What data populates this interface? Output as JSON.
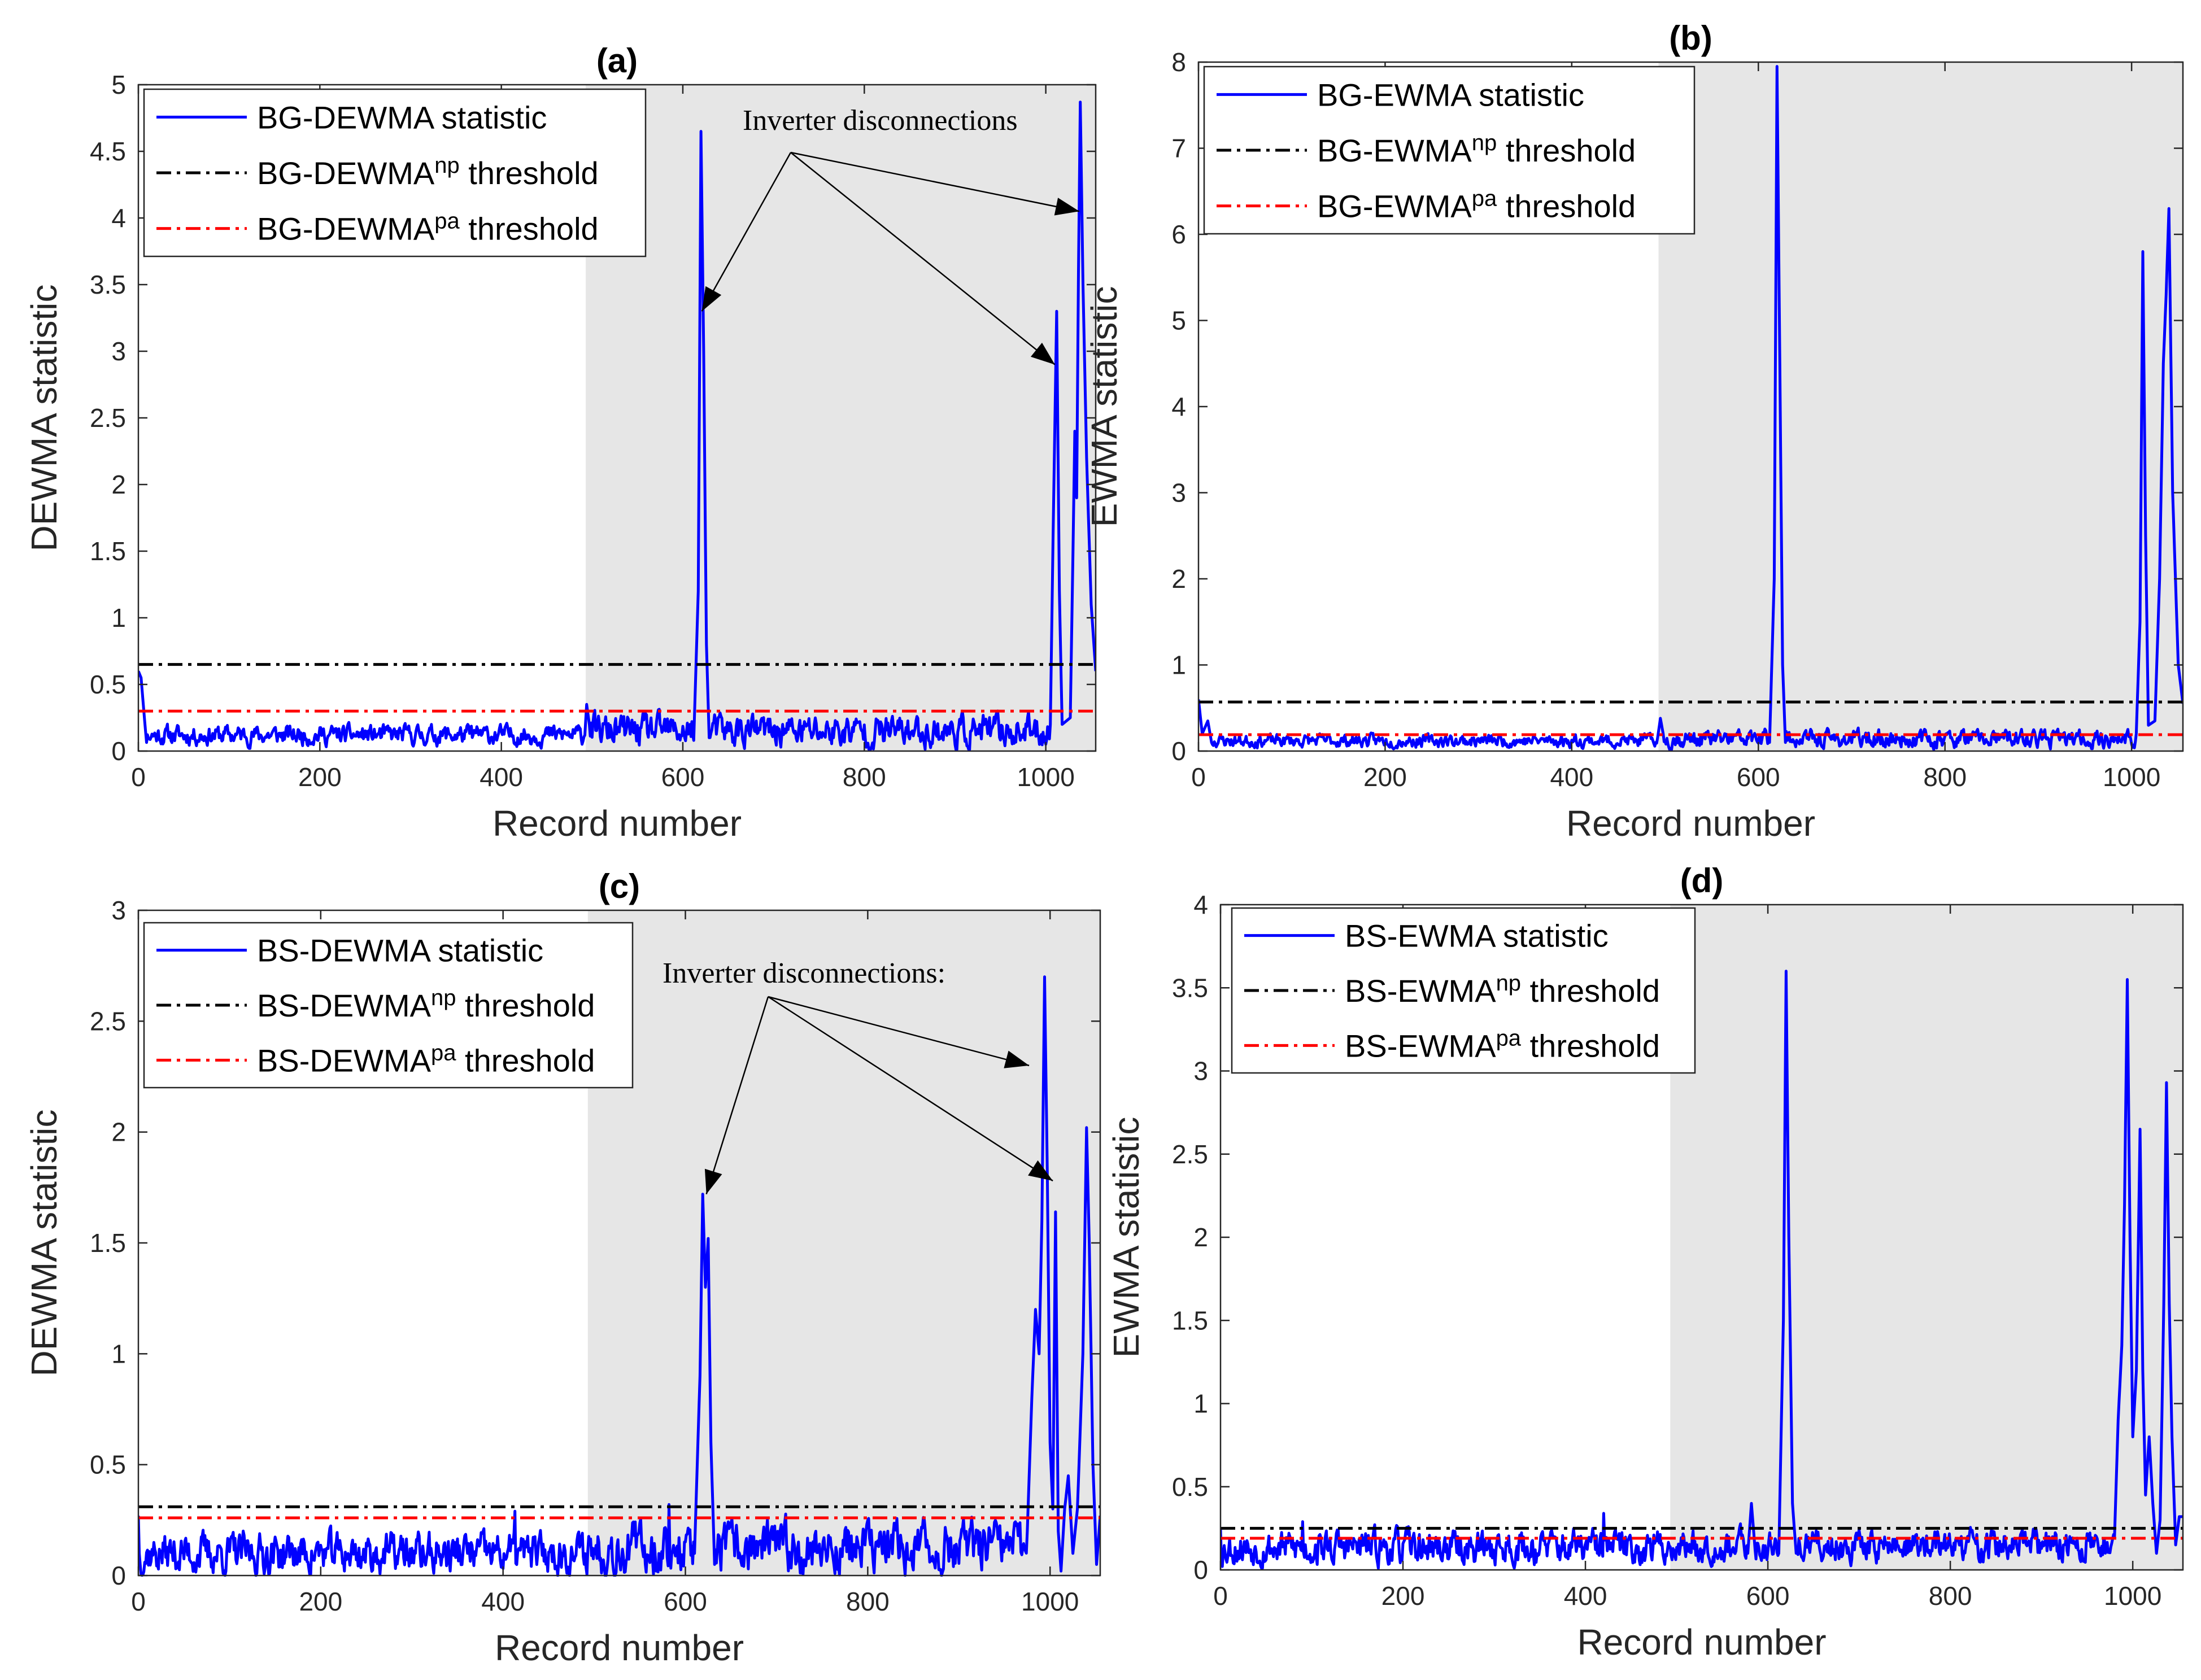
{
  "figure": {
    "background": "#ffffff",
    "colors": {
      "statistic": "#0000ff",
      "np_threshold": "#000000",
      "pa_threshold": "#ff0000",
      "shade": "#e6e6e6",
      "axis": "#262626"
    }
  },
  "chart_data": [
    {
      "id": "a",
      "type": "line",
      "title": "(a)",
      "xlabel": "Record number",
      "ylabel": "DEWMA statistic",
      "xlim": [
        0,
        1055
      ],
      "ylim": [
        0,
        5
      ],
      "xticks": [
        0,
        200,
        400,
        600,
        800,
        1000
      ],
      "yticks": [
        0,
        0.5,
        1,
        1.5,
        2,
        2.5,
        3,
        3.5,
        4,
        4.5,
        5
      ],
      "shaded_region": [
        493,
        1055
      ],
      "legend_position": "top-left",
      "statistic_series": {
        "name": "BG-DEWMA statistic",
        "baseline": {
          "seed": 11,
          "before": [
            0.04,
            0.2
          ],
          "after": [
            0.02,
            0.28
          ]
        },
        "points": [
          [
            0,
            0.6
          ],
          [
            3,
            0.55
          ],
          [
            8,
            0.14
          ],
          [
            492,
            0.12
          ],
          [
            494,
            0.35
          ],
          [
            497,
            0.2
          ],
          [
            612,
            0.08
          ],
          [
            617,
            1.2
          ],
          [
            620,
            4.65
          ],
          [
            623,
            3.0
          ],
          [
            626,
            0.8
          ],
          [
            629,
            0.1
          ],
          [
            1005,
            0.2
          ],
          [
            1008,
            1.6
          ],
          [
            1012,
            3.3
          ],
          [
            1015,
            1.2
          ],
          [
            1018,
            0.2
          ],
          [
            1027,
            0.25
          ],
          [
            1030,
            1.5
          ],
          [
            1032,
            2.4
          ],
          [
            1034,
            1.9
          ],
          [
            1036,
            3.6
          ],
          [
            1038,
            4.87
          ],
          [
            1041,
            3.5
          ],
          [
            1045,
            2.2
          ],
          [
            1050,
            1.1
          ],
          [
            1055,
            0.6
          ]
        ]
      },
      "thresholds": [
        {
          "kind": "np",
          "base": "BG-DEWMA",
          "sup": "np",
          "suffix": "threshold",
          "value": 0.65
        },
        {
          "kind": "pa",
          "base": "BG-DEWMA",
          "sup": "pa",
          "suffix": "threshold",
          "value": 0.3
        }
      ],
      "annotation": {
        "text": "Inverter disconnections",
        "arrow_targets": [
          [
            621,
            3.3
          ],
          [
            1010,
            2.9
          ],
          [
            1037,
            4.05
          ]
        ]
      }
    },
    {
      "id": "b",
      "type": "line",
      "title": "(b)",
      "xlabel": "Record number",
      "ylabel": "EWMA statistic",
      "xlim": [
        0,
        1055
      ],
      "ylim": [
        0,
        8
      ],
      "xticks": [
        0,
        200,
        400,
        600,
        800,
        1000
      ],
      "yticks": [
        0,
        1,
        2,
        3,
        4,
        5,
        6,
        7,
        8
      ],
      "shaded_region": [
        493,
        1055
      ],
      "legend_position": "top-left",
      "statistic_series": {
        "name": "BG-EWMA statistic",
        "baseline": {
          "seed": 23,
          "before": [
            0.04,
            0.2
          ],
          "after": [
            0.03,
            0.25
          ]
        },
        "points": [
          [
            0,
            0.6
          ],
          [
            4,
            0.2
          ],
          [
            10,
            0.35
          ],
          [
            14,
            0.1
          ],
          [
            492,
            0.15
          ],
          [
            495,
            0.38
          ],
          [
            498,
            0.2
          ],
          [
            612,
            0.1
          ],
          [
            617,
            2.0
          ],
          [
            620,
            7.95
          ],
          [
            623,
            4.5
          ],
          [
            626,
            1.0
          ],
          [
            629,
            0.1
          ],
          [
            1005,
            0.2
          ],
          [
            1009,
            1.5
          ],
          [
            1012,
            5.8
          ],
          [
            1015,
            2.5
          ],
          [
            1018,
            0.3
          ],
          [
            1025,
            0.35
          ],
          [
            1030,
            2.0
          ],
          [
            1034,
            4.5
          ],
          [
            1037,
            5.3
          ],
          [
            1040,
            6.3
          ],
          [
            1044,
            3.0
          ],
          [
            1050,
            1.0
          ],
          [
            1055,
            0.55
          ]
        ]
      },
      "thresholds": [
        {
          "kind": "np",
          "base": "BG-EWMA",
          "sup": "np",
          "suffix": "threshold",
          "value": 0.57
        },
        {
          "kind": "pa",
          "base": "BG-EWMA",
          "sup": "pa",
          "suffix": "threshold",
          "value": 0.19
        }
      ]
    },
    {
      "id": "c",
      "type": "line",
      "title": "(c)",
      "xlabel": "Record number",
      "ylabel": "DEWMA statistic",
      "xlim": [
        0,
        1055
      ],
      "ylim": [
        0,
        3
      ],
      "xticks": [
        0,
        200,
        400,
        600,
        800,
        1000
      ],
      "yticks": [
        0,
        0.5,
        1,
        1.5,
        2,
        2.5,
        3
      ],
      "shaded_region": [
        493,
        1055
      ],
      "legend_position": "top-left",
      "statistic_series": {
        "name": "BS-DEWMA statistic",
        "baseline": {
          "seed": 37,
          "before": [
            0.0,
            0.2
          ],
          "after": [
            0.0,
            0.25
          ]
        },
        "points": [
          [
            0,
            0.27
          ],
          [
            413,
            0.29
          ],
          [
            582,
            0.32
          ],
          [
            610,
            0.1
          ],
          [
            616,
            0.9
          ],
          [
            619,
            1.72
          ],
          [
            622,
            1.3
          ],
          [
            625,
            1.52
          ],
          [
            628,
            0.6
          ],
          [
            632,
            0.05
          ],
          [
            975,
            0.2
          ],
          [
            980,
            0.8
          ],
          [
            984,
            1.2
          ],
          [
            988,
            1.0
          ],
          [
            991,
            1.6
          ],
          [
            994,
            2.7
          ],
          [
            997,
            1.8
          ],
          [
            1000,
            0.6
          ],
          [
            1003,
            0.3
          ],
          [
            1006,
            1.64
          ],
          [
            1009,
            0.2
          ],
          [
            1012,
            0.02
          ],
          [
            1016,
            0.3
          ],
          [
            1020,
            0.45
          ],
          [
            1025,
            0.1
          ],
          [
            1030,
            0.3
          ],
          [
            1036,
            1.0
          ],
          [
            1040,
            2.02
          ],
          [
            1043,
            1.5
          ],
          [
            1047,
            0.5
          ],
          [
            1051,
            0.05
          ],
          [
            1055,
            0.27
          ]
        ]
      },
      "thresholds": [
        {
          "kind": "np",
          "base": "BS-DEWMA",
          "sup": "np",
          "suffix": "threshold",
          "value": 0.31
        },
        {
          "kind": "pa",
          "base": "BS-DEWMA",
          "sup": "pa",
          "suffix": "threshold",
          "value": 0.26
        }
      ],
      "annotation": {
        "text": "Inverter disconnections:",
        "arrow_targets": [
          [
            623,
            1.72
          ],
          [
            977,
            2.3
          ],
          [
            1003,
            1.78
          ]
        ]
      }
    },
    {
      "id": "d",
      "type": "line",
      "title": "(d)",
      "xlabel": "Record number",
      "ylabel": "EWMA statistic",
      "xlim": [
        0,
        1055
      ],
      "ylim": [
        0,
        4
      ],
      "xticks": [
        0,
        200,
        400,
        600,
        800,
        1000
      ],
      "yticks": [
        0,
        0.5,
        1,
        1.5,
        2,
        2.5,
        3,
        3.5,
        4
      ],
      "shaded_region": [
        493,
        1055
      ],
      "legend_position": "top-left",
      "statistic_series": {
        "name": "BS-EWMA statistic",
        "baseline": {
          "seed": 53,
          "before": [
            0.02,
            0.25
          ],
          "after": [
            0.04,
            0.25
          ]
        },
        "points": [
          [
            0,
            0.25
          ],
          [
            90,
            0.29
          ],
          [
            420,
            0.34
          ],
          [
            578,
            0.1
          ],
          [
            582,
            0.4
          ],
          [
            586,
            0.12
          ],
          [
            612,
            0.1
          ],
          [
            617,
            1.5
          ],
          [
            620,
            3.6
          ],
          [
            623,
            2.0
          ],
          [
            627,
            0.4
          ],
          [
            631,
            0.1
          ],
          [
            980,
            0.2
          ],
          [
            984,
            0.9
          ],
          [
            988,
            1.35
          ],
          [
            991,
            2.2
          ],
          [
            994,
            3.55
          ],
          [
            997,
            2.0
          ],
          [
            1000,
            0.8
          ],
          [
            1004,
            1.2
          ],
          [
            1008,
            2.65
          ],
          [
            1011,
            1.2
          ],
          [
            1014,
            0.45
          ],
          [
            1018,
            0.8
          ],
          [
            1022,
            0.4
          ],
          [
            1026,
            0.1
          ],
          [
            1030,
            0.3
          ],
          [
            1034,
            1.6
          ],
          [
            1037,
            2.93
          ],
          [
            1040,
            1.6
          ],
          [
            1043,
            0.8
          ],
          [
            1047,
            0.15
          ],
          [
            1051,
            0.32
          ],
          [
            1055,
            0.32
          ]
        ]
      },
      "thresholds": [
        {
          "kind": "np",
          "base": "BS-EWMA",
          "sup": "np",
          "suffix": "threshold",
          "value": 0.25
        },
        {
          "kind": "pa",
          "base": "BS-EWMA",
          "sup": "pa",
          "suffix": "threshold",
          "value": 0.19
        }
      ]
    }
  ]
}
